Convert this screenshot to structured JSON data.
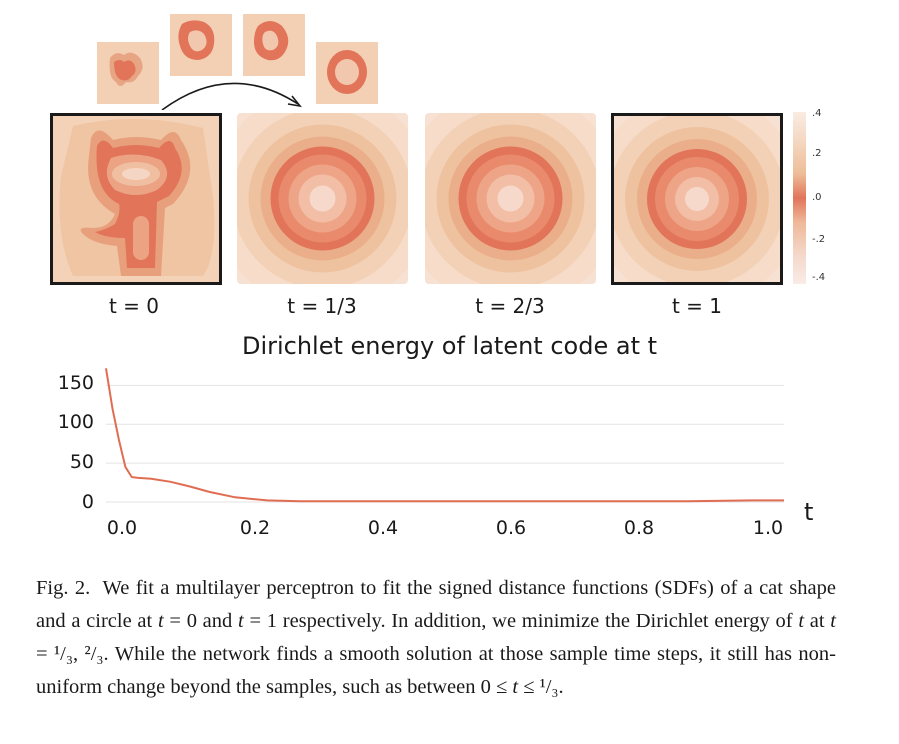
{
  "panels": [
    {
      "label": "t = 0",
      "shape": "cat"
    },
    {
      "label": "t = 1/3",
      "shape": "circle"
    },
    {
      "label": "t = 2/3",
      "shape": "circle"
    },
    {
      "label": "t = 1",
      "shape": "circle"
    }
  ],
  "colorbar": {
    "ticks": [
      ".4",
      ".2",
      ".0",
      "-.2",
      "-.4"
    ],
    "colors": [
      "#f7e3d6",
      "#f1c7a7",
      "#e58a5c",
      "#f1c7a7",
      "#f7e3d6"
    ]
  },
  "chart_data": {
    "type": "line",
    "title": "Dirichlet energy of latent code at t",
    "xlabel": "t",
    "ylabel": "",
    "xlim": [
      0.0,
      1.05
    ],
    "ylim": [
      0,
      175
    ],
    "x_ticks": [
      "0.0",
      "0.2",
      "0.4",
      "0.6",
      "0.8",
      "1.0"
    ],
    "y_ticks": [
      "0",
      "50",
      "100",
      "150"
    ],
    "grid": true,
    "series": [
      {
        "x": [
          0.0,
          0.01,
          0.02,
          0.03,
          0.04,
          0.05,
          0.07,
          0.1,
          0.13,
          0.16,
          0.2,
          0.25,
          0.3,
          0.4,
          0.5,
          0.6,
          0.7,
          0.8,
          0.9,
          1.0,
          1.05
        ],
        "y": [
          172,
          120,
          80,
          45,
          32,
          31,
          30,
          26,
          20,
          13,
          6,
          2,
          1,
          1,
          1,
          1,
          1,
          1,
          1,
          2,
          2
        ]
      }
    ],
    "color": "#e06d52"
  },
  "caption": {
    "label": "Fig. 2.",
    "text_1": "We fit a multilayer perceptron to fit the signed distance functions (SDFs) of a cat shape and a circle at ",
    "t": "t",
    "eq0": " = 0 and ",
    "eq1": " = 1 respectively. In addition, we minimize the Dirichlet energy of ",
    "at": " at ",
    "eq_samples": " = ¹/₃, ²/₃. While the network finds a smooth solution at those sample time steps, it still has non-uniform change beyond the samples, such as between 0 ≤ ",
    "leq": " ≤ ¹/₃."
  }
}
